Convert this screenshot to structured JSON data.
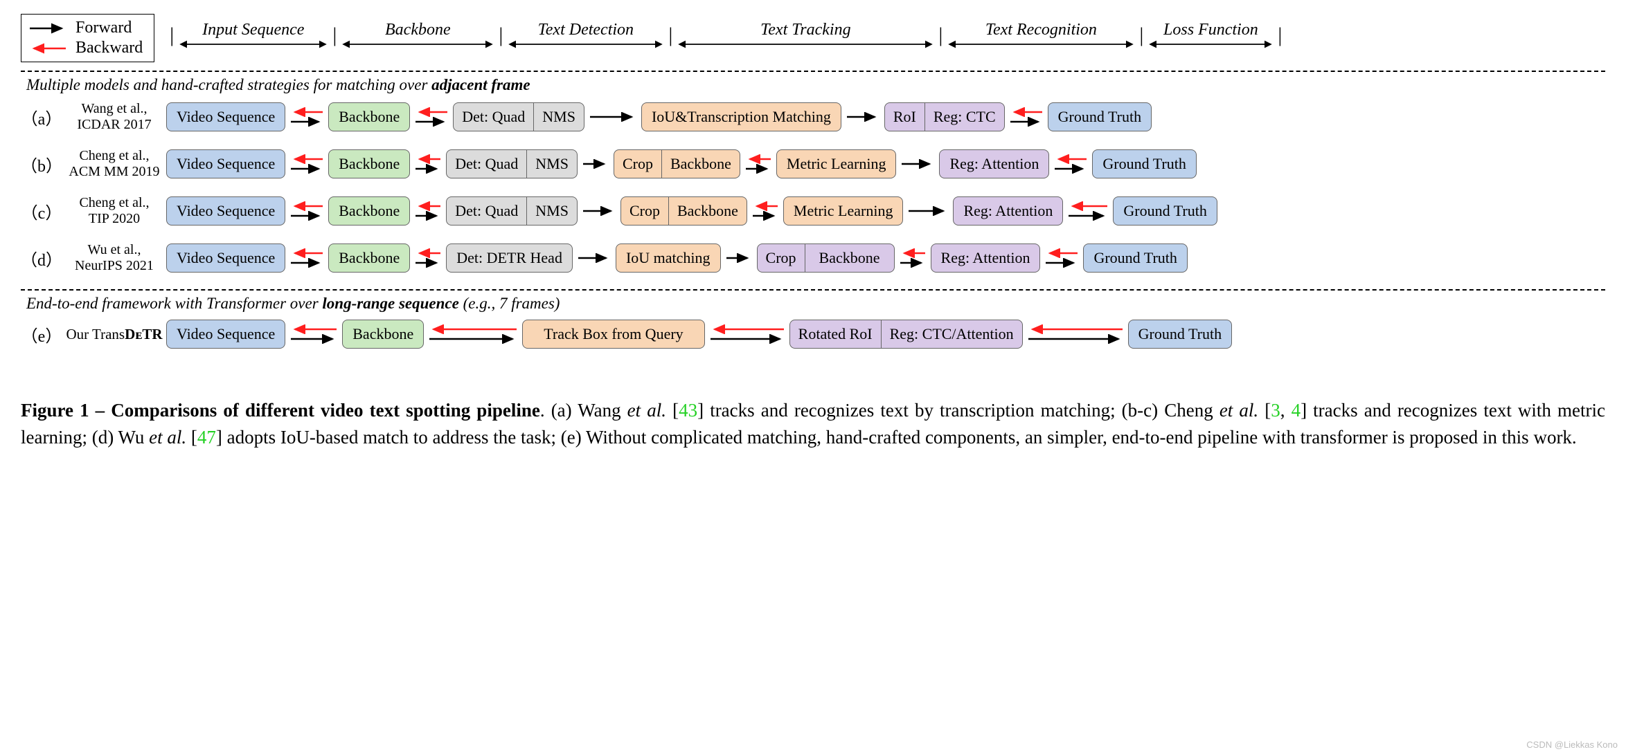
{
  "colors": {
    "blue": "#bcd1ec",
    "green": "#cae9c0",
    "gray": "#dcdcdc",
    "orange": "#f9d6b5",
    "purple": "#d9c9e8",
    "border": "#666666",
    "fwd": "#000000",
    "bwd": "#ff1e1e",
    "refgreen": "#26d126"
  },
  "legend": {
    "forward": "Forward",
    "backward": "Backward"
  },
  "stages": [
    "Input Sequence",
    "Backbone",
    "Text Detection",
    "Text Tracking",
    "Text Recognition",
    "Loss Function"
  ],
  "stage_widths": [
    225,
    230,
    235,
    380,
    280,
    190
  ],
  "section1_title_pre": "Multiple models and hand-crafted strategies for matching over ",
  "section1_title_bold": "adjacent frame",
  "section2_title_pre": "End-to-end framework with Transformer over ",
  "section2_title_bold": "long-range sequence",
  "section2_title_post": " (e.g., 7 frames)",
  "rows": {
    "a": {
      "id": "（a）",
      "ref1": "Wang et al.,",
      "ref2": "ICDAR 2017"
    },
    "b": {
      "id": "（b）",
      "ref1": "Cheng et al.,",
      "ref2": "ACM MM 2019"
    },
    "c": {
      "id": "（c）",
      "ref1": "Cheng et al.,",
      "ref2": "TIP 2020"
    },
    "d": {
      "id": "（d）",
      "ref1": "Wu et al.,",
      "ref2": "NeurIPS 2021"
    },
    "e": {
      "id": "（e）",
      "ref1": "Our Trans",
      "ref_bold": "DᴇTR"
    }
  },
  "boxes": {
    "video": "Video Sequence",
    "backbone": "Backbone",
    "det_quad": "Det: Quad",
    "nms": "NMS",
    "iou_trans": "IoU&Transcription Matching",
    "roi": "RoI",
    "reg_ctc": "Reg: CTC",
    "gt": "Ground Truth",
    "crop": "Crop",
    "metric": "Metric Learning",
    "reg_attn": "Reg: Attention",
    "det_detr": "Det: DETR Head",
    "iou_match": "IoU matching",
    "track_query": "Track Box from Query",
    "rot_roi": "Rotated RoI",
    "reg_ctc_attn": "Reg: CTC/Attention"
  },
  "caption": {
    "lead": "Figure 1 – Comparisons of different video text spotting pipeline",
    "body1": ". (a) Wang ",
    "et": "et al.",
    "body2": " [",
    "r43": "43",
    "body3": "] tracks and recognizes text by transcription matching; (b-c) Cheng ",
    "body4": " [",
    "r3": "3",
    "body5": ", ",
    "r4": "4",
    "body6": "] tracks and recognizes text with metric learning; (d) Wu ",
    "body7": " [",
    "r47": "47",
    "body8": "] adopts IoU-based match to address the task; (e) Without complicated matching, hand-crafted components, an simpler, end-to-end pipeline with transformer is proposed in this work."
  },
  "watermark": "CSDN @Liekkas Kono"
}
